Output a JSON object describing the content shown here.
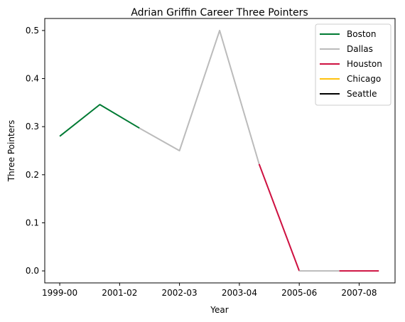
{
  "chart_data": {
    "type": "line",
    "title": "Adrian Griffin Career Three Pointers",
    "xlabel": "Year",
    "ylabel": "Three Pointers",
    "x_ticks": [
      "1999-00",
      "2001-02",
      "2002-03",
      "2003-04",
      "2005-06",
      "2007-08"
    ],
    "ylim": [
      -0.025,
      0.525
    ],
    "y_ticks": [
      "0.0",
      "0.1",
      "0.2",
      "0.3",
      "0.4",
      "0.5"
    ],
    "y_tick_values": [
      0.0,
      0.1,
      0.2,
      0.3,
      0.4,
      0.5
    ],
    "legend_position": "top-right",
    "series": [
      {
        "name": "Boston",
        "color": "#007A33",
        "points": [
          [
            0,
            0.28
          ],
          [
            0.67,
            0.346
          ],
          [
            1.33,
            0.297
          ]
        ]
      },
      {
        "name": "Dallas",
        "color": "#BBBBBB",
        "points": [
          [
            1.33,
            0.297
          ],
          [
            2,
            0.25
          ],
          [
            2.67,
            0.5
          ],
          [
            3.33,
            0.222
          ]
        ]
      },
      {
        "name": "Houston",
        "color": "#CE1141",
        "points": [
          [
            3.33,
            0.222
          ],
          [
            4,
            0.0
          ]
        ]
      },
      {
        "name": "Dallas",
        "color": "#BBBBBB",
        "points": [
          [
            4,
            0.0
          ],
          [
            4.67,
            0.0
          ]
        ]
      },
      {
        "name": "Houston",
        "color": "#CE1141",
        "points": [
          [
            4.67,
            0.0
          ],
          [
            5.33,
            0.0
          ]
        ]
      },
      {
        "name": "Chicago",
        "color": "#FFC20E",
        "points": []
      },
      {
        "name": "Seattle",
        "color": "#000000",
        "points": []
      }
    ],
    "legend": [
      {
        "name": "Boston",
        "color": "#007A33"
      },
      {
        "name": "Dallas",
        "color": "#BBBBBB"
      },
      {
        "name": "Houston",
        "color": "#CE1141"
      },
      {
        "name": "Chicago",
        "color": "#FFC20E"
      },
      {
        "name": "Seattle",
        "color": "#000000"
      }
    ]
  }
}
